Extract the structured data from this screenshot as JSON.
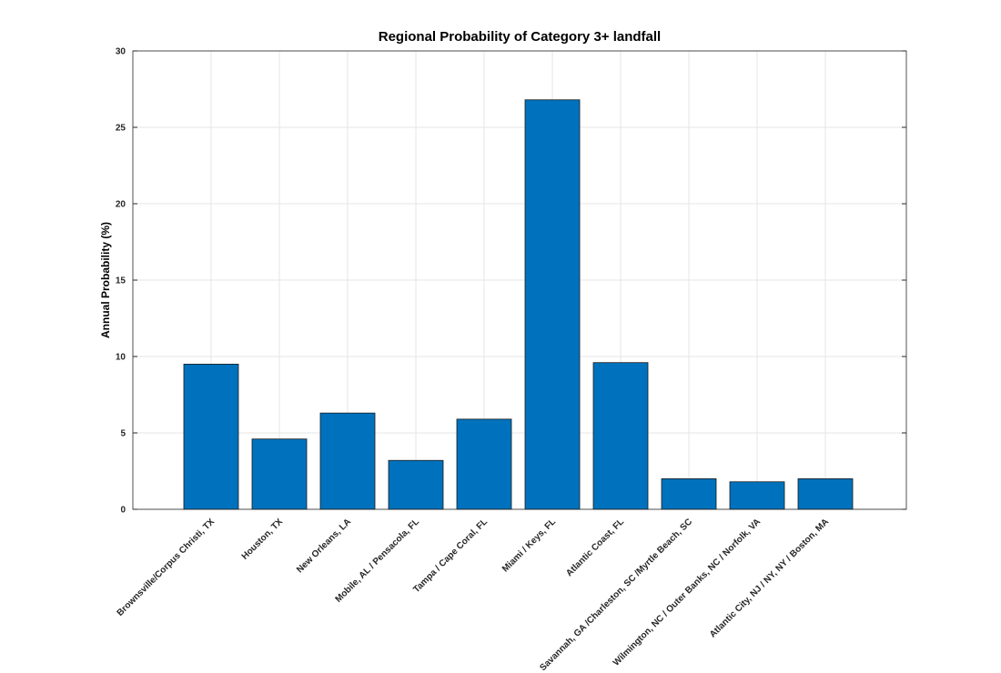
{
  "chart_data": {
    "type": "bar",
    "title": "Regional Probability of Category 3+ landfall",
    "y_label": "Annual Probability (%)",
    "categories": [
      "Brownsville/Corpus Christi, TX",
      "Houston, TX",
      "New Orleans, LA",
      "Mobile, AL / Pensacola, FL",
      "Tampa / Cape Coral, FL",
      "Miami / Keys, FL",
      "Atlantic Coast, FL",
      "Savannah, GA /Charleston, SC /Myrtle Beach, SC",
      "Wilmington, NC / Outer Banks, NC / Norfolk, VA",
      "Atlantic City, NJ / NY, NY / Boston, MA"
    ],
    "values": [
      9.5,
      4.6,
      6.3,
      3.2,
      5.9,
      26.8,
      9.6,
      2.0,
      1.8,
      2.0
    ],
    "color": "#0072bd",
    "ylim": [
      0,
      30
    ],
    "yticks": [
      0,
      5,
      10,
      15,
      20,
      25,
      30
    ],
    "grid": true
  }
}
